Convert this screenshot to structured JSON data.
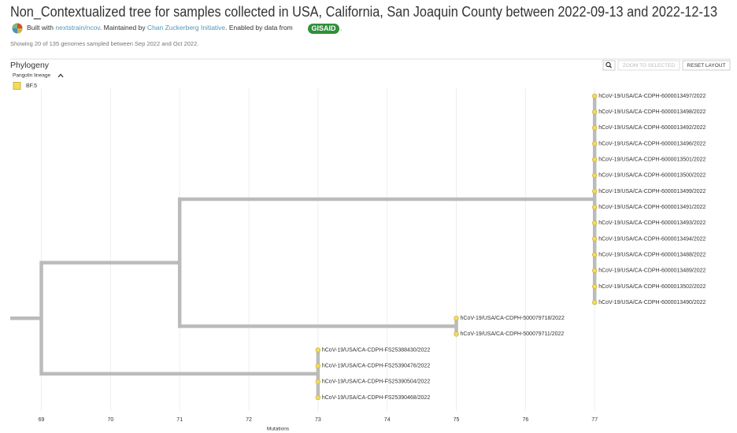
{
  "header": {
    "title": "Non_Contextualized tree for samples collected in USA, California, San Joaquin County between 2022-09-13 and 2022-12-13",
    "built_with": "Built with ",
    "build_link": "nextstrain/ncov",
    "maintained_by": ". Maintained by ",
    "maintainer_link": "Chan Zuckerberg Initiative",
    "enabled_by": ". Enabled by data from ",
    "data_source": "GISAID",
    "end": ".",
    "summary": "Showing 20 of 135 genomes sampled between Sep 2022 and Oct 2022."
  },
  "panel": {
    "title": "Phylogeny",
    "buttons": [
      "ZOOM TO SELECTED",
      "RESET LAYOUT"
    ],
    "legend": {
      "title": "Pangolin lineage",
      "items": [
        {
          "label": "BF.5",
          "color": "#f2dc5d"
        }
      ]
    }
  },
  "tree": {
    "x_label": "Mutations",
    "xlim": [
      68.55,
      78.99
    ],
    "xticks": [
      69,
      70,
      71,
      72,
      73,
      74,
      75,
      76,
      77
    ],
    "grid": true,
    "branch_color": "#bbbbbb",
    "root": {
      "x": 69,
      "children": [
        {
          "x": 71,
          "children": [
            {
              "x": 77,
              "children": [
                {
                  "name": "hCoV-19/USA/CA-CDPH-6000013497/2022",
                  "x": 77
                },
                {
                  "name": "hCoV-19/USA/CA-CDPH-6000013498/2022",
                  "x": 77
                },
                {
                  "name": "hCoV-19/USA/CA-CDPH-6000013492/2022",
                  "x": 77
                },
                {
                  "name": "hCoV-19/USA/CA-CDPH-6000013496/2022",
                  "x": 77
                },
                {
                  "name": "hCoV-19/USA/CA-CDPH-6000013501/2022",
                  "x": 77
                },
                {
                  "name": "hCoV-19/USA/CA-CDPH-6000013500/2022",
                  "x": 77
                },
                {
                  "name": "hCoV-19/USA/CA-CDPH-6000013499/2022",
                  "x": 77
                },
                {
                  "name": "hCoV-19/USA/CA-CDPH-6000013491/2022",
                  "x": 77
                },
                {
                  "name": "hCoV-19/USA/CA-CDPH-6000013493/2022",
                  "x": 77
                },
                {
                  "name": "hCoV-19/USA/CA-CDPH-6000013494/2022",
                  "x": 77
                },
                {
                  "name": "hCoV-19/USA/CA-CDPH-6000013488/2022",
                  "x": 77
                },
                {
                  "name": "hCoV-19/USA/CA-CDPH-6000013489/2022",
                  "x": 77
                },
                {
                  "name": "hCoV-19/USA/CA-CDPH-6000013502/2022",
                  "x": 77
                },
                {
                  "name": "hCoV-19/USA/CA-CDPH-6000013490/2022",
                  "x": 77
                }
              ]
            },
            {
              "x": 75,
              "children": [
                {
                  "name": "hCoV-19/USA/CA-CDPH-500079718/2022",
                  "x": 75
                },
                {
                  "name": "hCoV-19/USA/CA-CDPH-500079711/2022",
                  "x": 75
                }
              ]
            }
          ]
        },
        {
          "x": 73,
          "children": [
            {
              "name": "hCoV-19/USA/CA-CDPH-FS25388430/2022",
              "x": 73
            },
            {
              "name": "hCoV-19/USA/CA-CDPH-FS25390476/2022",
              "x": 73
            },
            {
              "name": "hCoV-19/USA/CA-CDPH-FS25390504/2022",
              "x": 73
            },
            {
              "name": "hCoV-19/USA/CA-CDPH-FS25390468/2022",
              "x": 73
            }
          ]
        }
      ]
    }
  }
}
